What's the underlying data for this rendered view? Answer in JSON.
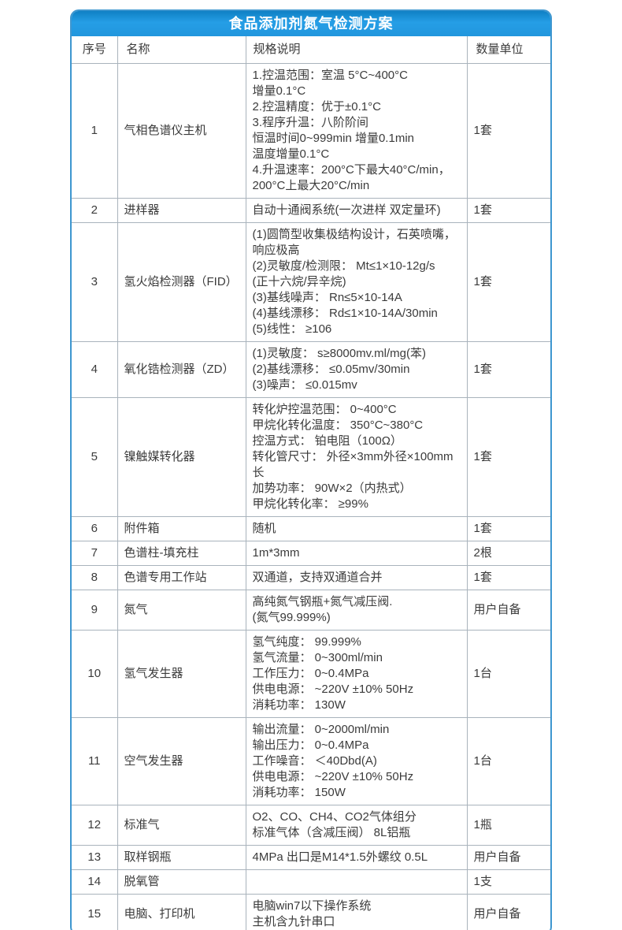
{
  "header": {
    "title": "食品添加剂氮气检测方案",
    "band_color": "#2196dd",
    "border_color": "#3e96cf",
    "title_color": "#ffffff"
  },
  "table": {
    "columns": [
      "序号",
      "名称",
      "规格说明",
      "数量单位"
    ],
    "rows": [
      {
        "no": "1",
        "name": "气相色谱仪主机",
        "spec": [
          "1.控温范围：室温 5°C~400°C",
          "增量0.1°C",
          "2.控温精度：优于±0.1°C",
          "3.程序升温：八阶阶间",
          "恒温时间0~999min 增量0.1min",
          "温度增量0.1°C",
          "4.升温速率：200°C下最大40°C/min，",
          "200°C上最大20°C/min"
        ],
        "qty": "1套"
      },
      {
        "no": "2",
        "name": "进样器",
        "spec": [
          "自动十通阀系统(一次进样 双定量环)"
        ],
        "qty": "1套"
      },
      {
        "no": "3",
        "name": "氢火焰检测器（FID）",
        "spec": [
          "(1)圆筒型收集极结构设计，石英喷嘴，",
          "响应极高",
          "(2)灵敏度/检测限： Mt≤1×10-12g/s",
          "(正十六烷/异辛烷)",
          "(3)基线噪声： Rn≤5×10-14A",
          "(4)基线漂移： Rd≤1×10-14A/30min",
          "(5)线性： ≥106"
        ],
        "qty": "1套"
      },
      {
        "no": "4",
        "name": "氧化锆检测器（ZD）",
        "spec": [
          "(1)灵敏度： s≥8000mv.ml/mg(苯)",
          "(2)基线漂移： ≤0.05mv/30min",
          "(3)噪声： ≤0.015mv"
        ],
        "qty": "1套"
      },
      {
        "no": "5",
        "name": "镍触媒转化器",
        "spec": [
          "转化炉控温范围： 0~400°C",
          "甲烷化转化温度： 350°C~380°C",
          "控温方式： 铂电阻（100Ω）",
          "转化管尺寸： 外径×3mm外径×100mm长",
          "加势功率： 90W×2（内热式）",
          "甲烷化转化率： ≥99%"
        ],
        "qty": "1套"
      },
      {
        "no": "6",
        "name": "附件箱",
        "spec": [
          "随机"
        ],
        "qty": "1套"
      },
      {
        "no": "7",
        "name": "色谱柱-填充柱",
        "spec": [
          "1m*3mm"
        ],
        "qty": "2根"
      },
      {
        "no": "8",
        "name": "色谱专用工作站",
        "spec": [
          "双通道，支持双通道合并"
        ],
        "qty": "1套"
      },
      {
        "no": "9",
        "name": "氮气",
        "spec": [
          "高纯氮气钢瓶+氮气减压阀.",
          "(氮气99.999%)"
        ],
        "qty": "用户自备"
      },
      {
        "no": "10",
        "name": "氢气发生器",
        "spec": [
          "氢气纯度： 99.999%",
          "氢气流量： 0~300ml/min",
          "工作压力： 0~0.4MPa",
          "供电电源： ~220V ±10% 50Hz",
          "消耗功率： 130W"
        ],
        "qty": "1台"
      },
      {
        "no": "11",
        "name": "空气发生器",
        "spec": [
          "输出流量： 0~2000ml/min",
          "输出压力： 0~0.4MPa",
          "工作噪音： ＜40Dbd(A)",
          "供电电源： ~220V ±10% 50Hz",
          "消耗功率： 150W"
        ],
        "qty": "1台"
      },
      {
        "no": "12",
        "name": "标准气",
        "spec": [
          "O2、CO、CH4、CO2气体组分",
          "标准气体（含减压阀） 8L铝瓶"
        ],
        "qty": "1瓶"
      },
      {
        "no": "13",
        "name": "取样钢瓶",
        "spec": [
          "4MPa 出口是M14*1.5外螺纹 0.5L"
        ],
        "qty": "用户自备"
      },
      {
        "no": "14",
        "name": "脱氧管",
        "spec": [],
        "qty": "1支"
      },
      {
        "no": "15",
        "name": "电脑、打印机",
        "spec": [
          "电脑win7以下操作系统",
          "主机含九针串口"
        ],
        "qty": "用户自备"
      }
    ]
  }
}
